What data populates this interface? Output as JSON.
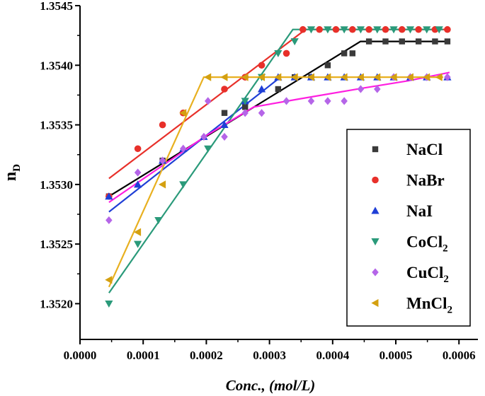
{
  "chart_data": {
    "type": "scatter",
    "xlabel": "Conc., (mol/L)",
    "ylabel": "n",
    "ylabel_sub": "D",
    "xlim": [
      0.0,
      0.00063
    ],
    "ylim": [
      1.3517,
      1.3545
    ],
    "x_ticks": [
      "0.0000",
      "0.0001",
      "0.0002",
      "0.0003",
      "0.0004",
      "0.0005",
      "0.0006"
    ],
    "x_tick_values": [
      0.0,
      0.0001,
      0.0002,
      0.0003,
      0.0004,
      0.0005,
      0.0006
    ],
    "y_ticks": [
      "1.3520",
      "1.3525",
      "1.3530",
      "1.3535",
      "1.3540",
      "1.3545"
    ],
    "y_tick_values": [
      1.352,
      1.3525,
      1.353,
      1.3535,
      1.354,
      1.3545
    ],
    "legend_position": "right",
    "series": [
      {
        "name": "NaCl",
        "sub": "",
        "marker": "square",
        "color": "#3a3a3a",
        "line_color": "#000000",
        "x": [
          4.58e-05,
          0.0001307,
          0.0002287,
          0.0002614,
          0.0003137,
          0.0003399,
          0.000366,
          0.0003922,
          0.0004183,
          0.0004314,
          0.0004575,
          0.0004837,
          0.0005098,
          0.000536,
          0.0005621,
          0.0005817
        ],
        "y": [
          1.3529,
          1.3532,
          1.3536,
          1.35365,
          1.3538,
          1.3539,
          1.3539,
          1.354,
          1.3541,
          1.3541,
          1.3542,
          1.3542,
          1.3542,
          1.3542,
          1.3542,
          1.3542
        ],
        "fit": [
          [
            4.58e-05,
            1.3529
          ],
          [
            0.000444,
            1.3542
          ],
          [
            0.000585,
            1.3542
          ]
        ]
      },
      {
        "name": "NaBr",
        "sub": "",
        "marker": "circle",
        "color": "#e8302a",
        "line_color": "#e8302a",
        "x": [
          4.58e-05,
          9.15e-05,
          0.0001307,
          0.0001634,
          0.0002287,
          0.0002614,
          0.0002876,
          0.0003268,
          0.0003529,
          0.0003791,
          0.0004052,
          0.0004314,
          0.0004575,
          0.0004837,
          0.0005098,
          0.000536,
          0.0005621,
          0.0005817
        ],
        "y": [
          1.3529,
          1.3533,
          1.3535,
          1.3536,
          1.3538,
          1.3539,
          1.354,
          1.3541,
          1.3543,
          1.3543,
          1.3543,
          1.3543,
          1.3543,
          1.3543,
          1.3543,
          1.3543,
          1.3543,
          1.3543
        ],
        "fit": [
          [
            4.58e-05,
            1.35305
          ],
          [
            0.000357,
            1.3543
          ],
          [
            0.000585,
            1.3543
          ]
        ]
      },
      {
        "name": "NaI",
        "sub": "",
        "marker": "triangle-up",
        "color": "#1f3fd6",
        "line_color": "#1f3fd6",
        "x": [
          4.58e-05,
          9.15e-05,
          0.0001307,
          0.0001634,
          0.0001961,
          0.0002287,
          0.0002614,
          0.0002876,
          0.0003137,
          0.0003399,
          0.000366,
          0.0003922,
          0.0004183,
          0.0004444,
          0.0004706,
          0.0004967,
          0.0005229,
          0.000549,
          0.0005817
        ],
        "y": [
          1.3529,
          1.353,
          1.3532,
          1.3533,
          1.3534,
          1.3535,
          1.3537,
          1.3538,
          1.3539,
          1.3539,
          1.3539,
          1.3539,
          1.3539,
          1.3539,
          1.3539,
          1.3539,
          1.3539,
          1.3539,
          1.3539
        ],
        "fit": [
          [
            4.58e-05,
            1.35277
          ],
          [
            0.000315,
            1.35389
          ]
        ]
      },
      {
        "name": "CoCl",
        "sub": "2",
        "marker": "triangle-down",
        "color": "#2a9a7a",
        "line_color": "#2a9a7a",
        "x": [
          4.58e-05,
          9.15e-05,
          0.0001242,
          0.0001634,
          0.0002026,
          0.0002614,
          0.0002876,
          0.0003137,
          0.0003399,
          0.000366,
          0.0003922,
          0.0004183,
          0.0004444,
          0.0004706,
          0.0004967,
          0.0005229,
          0.000549,
          0.0005686
        ],
        "y": [
          1.352,
          1.3525,
          1.3527,
          1.353,
          1.3533,
          1.3537,
          1.3539,
          1.3541,
          1.3542,
          1.3543,
          1.3543,
          1.3543,
          1.3543,
          1.3543,
          1.3543,
          1.3543,
          1.3543,
          1.3543
        ],
        "fit": [
          [
            4.58e-05,
            1.35209
          ],
          [
            0.000337,
            1.3543
          ],
          [
            0.000575,
            1.3543
          ]
        ]
      },
      {
        "name": "CuCl",
        "sub": "2",
        "marker": "diamond",
        "color": "#b565e8",
        "line_color": "#ff1fe0",
        "x": [
          4.58e-05,
          9.15e-05,
          0.0001307,
          0.0001634,
          0.0001961,
          0.0002026,
          0.0002287,
          0.0002614,
          0.0002876,
          0.0003268,
          0.000366,
          0.0003922,
          0.0004183,
          0.0004444,
          0.0004706,
          0.0004967,
          0.0005229,
          0.000549,
          0.0005817
        ],
        "y": [
          1.3527,
          1.3531,
          1.3532,
          1.3533,
          1.3534,
          1.3537,
          1.3534,
          1.3536,
          1.3536,
          1.3537,
          1.3537,
          1.3537,
          1.3537,
          1.3538,
          1.3538,
          1.3539,
          1.3539,
          1.3539,
          1.3539
        ],
        "fit": [
          [
            4.58e-05,
            1.35285
          ],
          [
            0.0002,
            1.35341
          ],
          [
            0.000275,
            1.35365
          ],
          [
            0.00035,
            1.35372
          ],
          [
            0.00045,
            1.35381
          ],
          [
            0.00052,
            1.35387
          ],
          [
            0.000585,
            1.35394
          ]
        ]
      },
      {
        "name": "MnCl",
        "sub": "2",
        "marker": "triangle-left",
        "color": "#d4a010",
        "line_color": "#e8b020",
        "x": [
          4.58e-05,
          9.15e-05,
          0.0001307,
          0.0001634,
          0.0002026,
          0.0002287,
          0.0002614,
          0.0002876,
          0.0003137,
          0.0003399,
          0.000366,
          0.0003922,
          0.0004183,
          0.0004444,
          0.0004706,
          0.0004967,
          0.0005229,
          0.000549,
          0.0005686
        ],
        "y": [
          1.3522,
          1.3526,
          1.353,
          1.3536,
          1.3539,
          1.3539,
          1.3539,
          1.3539,
          1.3539,
          1.3539,
          1.3539,
          1.3539,
          1.3539,
          1.3539,
          1.3539,
          1.3539,
          1.3539,
          1.3539,
          1.3539
        ],
        "fit": [
          [
            4.58e-05,
            1.35214
          ],
          [
            0.000196,
            1.3539
          ],
          [
            0.000575,
            1.3539
          ]
        ]
      }
    ]
  }
}
